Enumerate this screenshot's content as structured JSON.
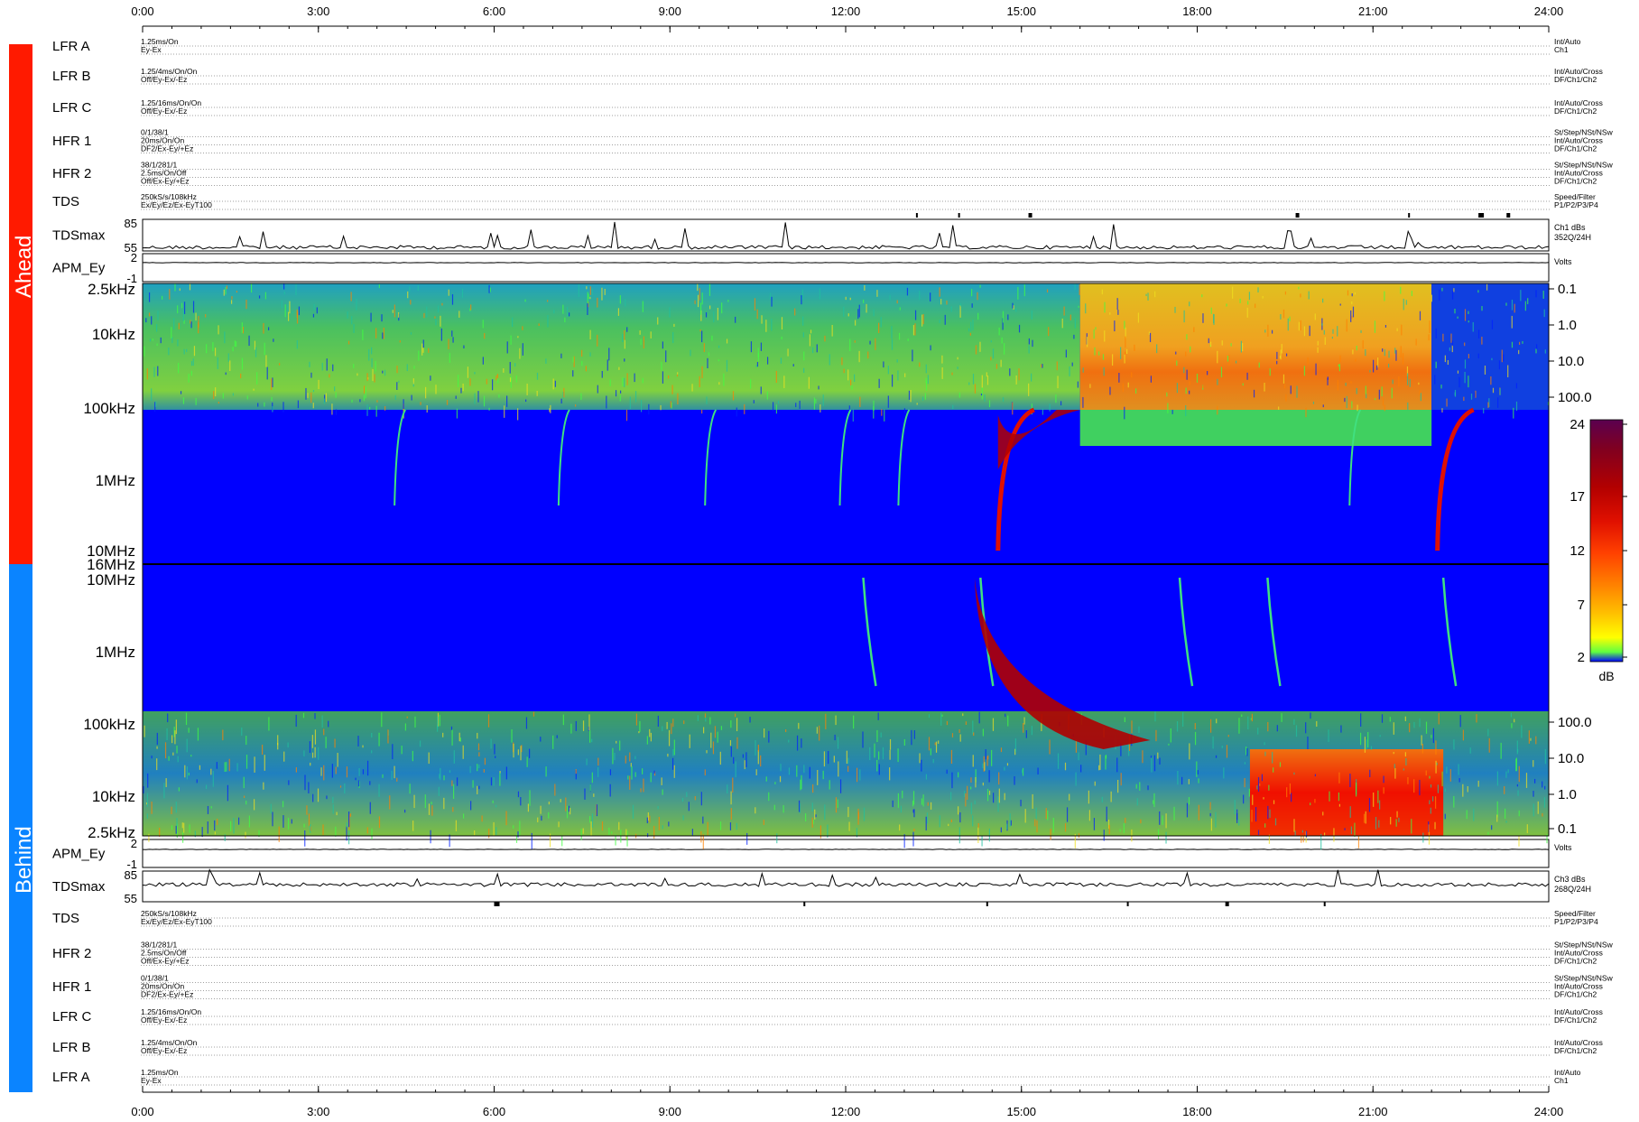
{
  "time_axis": {
    "ticks": [
      "0:00",
      "3:00",
      "6:00",
      "9:00",
      "12:00",
      "15:00",
      "18:00",
      "21:00",
      "24:00"
    ]
  },
  "side_labels": {
    "ahead": "Ahead",
    "behind": "Behind"
  },
  "colors": {
    "ahead_bar": "#ff1a00",
    "behind_bar": "#0a84ff",
    "background": "#0000ff"
  },
  "ahead": {
    "rows": [
      {
        "name": "LFR A",
        "left": [
          "1.25ms/On",
          "Ey-Ex"
        ],
        "right": [
          "Int/Auto",
          "Ch1"
        ]
      },
      {
        "name": "LFR B",
        "left": [
          "1.25/4ms/On/On",
          "Off/Ey-Ex/-Ez"
        ],
        "right": [
          "Int/Auto/Cross",
          "DF/Ch1/Ch2"
        ]
      },
      {
        "name": "LFR C",
        "left": [
          "1.25/16ms/On/On",
          "Off/Ey-Ex/-Ez"
        ],
        "right": [
          "Int/Auto/Cross",
          "DF/Ch1/Ch2"
        ]
      },
      {
        "name": "HFR 1",
        "left": [
          "0/1/38/1",
          "20ms/On/On",
          "DF2/Ex-Ey/+Ez"
        ],
        "right": [
          "St/Step/NSt/NSw",
          "Int/Auto/Cross",
          "DF/Ch1/Ch2"
        ]
      },
      {
        "name": "HFR 2",
        "left": [
          "38/1/281/1",
          "2.5ms/On/Off",
          "Off/Ex-Ey/+Ez"
        ],
        "right": [
          "St/Step/NSt/NSw",
          "Int/Auto/Cross",
          "DF/Ch1/Ch2"
        ]
      },
      {
        "name": "TDS",
        "left": [
          "250kS/s/108kHz",
          "Ex/Ey/Ez/Ex-EyT100"
        ],
        "right": [
          "Speed/Filter",
          "P1/P2/P3/P4"
        ]
      }
    ],
    "tdsmax": {
      "label": "TDSmax",
      "yticks": [
        "85",
        "55"
      ],
      "right": [
        "Ch1 dBs",
        "352Q/24H"
      ]
    },
    "apm": {
      "label": "APM_Ey",
      "yticks": [
        "2",
        "-1"
      ],
      "right": [
        "Volts"
      ]
    },
    "spectro": {
      "freq_labels": [
        "2.5kHz",
        "10kHz",
        "100kHz",
        "1MHz",
        "10MHz"
      ],
      "right_ticks": [
        "0.1",
        "1.0",
        "10.0",
        "100.0"
      ]
    }
  },
  "behind": {
    "rows": [
      {
        "name": "TDS",
        "left": [
          "250kS/s/108kHz",
          "Ex/Ey/Ez/Ex-EyT100"
        ],
        "right": [
          "Speed/Filter",
          "P1/P2/P3/P4"
        ]
      },
      {
        "name": "HFR 2",
        "left": [
          "38/1/281/1",
          "2.5ms/On/Off",
          "Off/Ex-Ey/+Ez"
        ],
        "right": [
          "St/Step/NSt/NSw",
          "Int/Auto/Cross",
          "DF/Ch1/Ch2"
        ]
      },
      {
        "name": "HFR 1",
        "left": [
          "0/1/38/1",
          "20ms/On/On",
          "DF2/Ex-Ey/+Ez"
        ],
        "right": [
          "St/Step/NSt/NSw",
          "Int/Auto/Cross",
          "DF/Ch1/Ch2"
        ]
      },
      {
        "name": "LFR C",
        "left": [
          "1.25/16ms/On/On",
          "Off/Ey-Ex/-Ez"
        ],
        "right": [
          "Int/Auto/Cross",
          "DF/Ch1/Ch2"
        ]
      },
      {
        "name": "LFR B",
        "left": [
          "1.25/4ms/On/On",
          "Off/Ey-Ex/-Ez"
        ],
        "right": [
          "Int/Auto/Cross",
          "DF/Ch1/Ch2"
        ]
      },
      {
        "name": "LFR A",
        "left": [
          "1.25ms/On",
          "Ey-Ex"
        ],
        "right": [
          "Int/Auto",
          "Ch1"
        ]
      }
    ],
    "tdsmax": {
      "label": "TDSmax",
      "yticks": [
        "85",
        "55"
      ],
      "right": [
        "Ch3 dBs",
        "268Q/24H"
      ]
    },
    "apm": {
      "label": "APM_Ey",
      "yticks": [
        "2",
        "-1"
      ],
      "right": [
        "Volts"
      ]
    },
    "spectro": {
      "freq_labels": [
        "10MHz",
        "1MHz",
        "100kHz",
        "10kHz",
        "2.5kHz"
      ],
      "right_ticks": [
        "100.0",
        "10.0",
        "1.0",
        "0.1"
      ]
    }
  },
  "divider_label": "16MHz",
  "colorbar": {
    "ticks": [
      "24",
      "17",
      "12",
      "7",
      "2"
    ],
    "unit": "dB",
    "colors": [
      "#5a0050",
      "#800020",
      "#b30000",
      "#e01000",
      "#ff4000",
      "#ff8000",
      "#ffc000",
      "#ffff00",
      "#a0ff00",
      "#00ff60",
      "#0000ff"
    ]
  },
  "chart_data": {
    "type": "heatmap",
    "x": [
      "0:00",
      "3:00",
      "6:00",
      "9:00",
      "12:00",
      "15:00",
      "18:00",
      "21:00",
      "24:00"
    ],
    "xlim_hours": [
      0,
      24
    ],
    "colorbar_range_db": [
      2,
      24
    ],
    "ahead_bursts_hours": [
      4.3,
      7.1,
      9.6,
      11.9,
      12.9,
      14.6,
      20.6,
      22.1
    ],
    "behind_bursts_hours": [
      12.3,
      14.3,
      17.7,
      19.2,
      22.2
    ],
    "ahead_events": [
      {
        "start_hours": 14.5,
        "end_hours": 16.0,
        "type": "intense drifting burst"
      },
      {
        "start_hours": 22.0,
        "end_hours": 23.0,
        "type": "intense drifting burst"
      }
    ],
    "behind_events": [
      {
        "start_hours": 14.2,
        "end_hours": 17.2,
        "type": "intense drifting burst"
      },
      {
        "start_hours": 18.9,
        "end_hours": 22.2,
        "type": "enhanced low-frequency band"
      }
    ]
  }
}
